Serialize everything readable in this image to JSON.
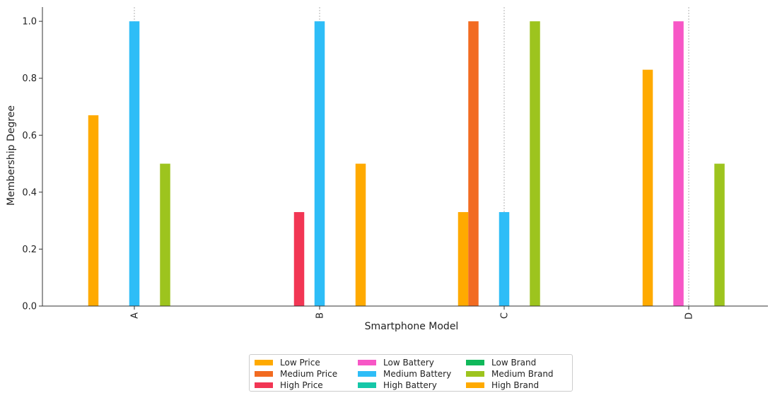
{
  "chart_data": {
    "type": "bar",
    "title": "",
    "xlabel": "Smartphone Model",
    "ylabel": "Membership Degree",
    "categories": [
      "A",
      "B",
      "C",
      "D"
    ],
    "ylim": [
      0,
      1.05
    ],
    "yticks": [
      "0.0",
      "0.2",
      "0.4",
      "0.6",
      "0.8",
      "1.0"
    ],
    "grid": "vertical dotted lines at categories",
    "legend_position": "bottom-center",
    "series": [
      {
        "name": "Low Price",
        "color": "#ffaa00",
        "values": [
          0.67,
          0.0,
          0.33,
          0.83
        ]
      },
      {
        "name": "Medium Price",
        "color": "#f26b21",
        "values": [
          0.0,
          0.0,
          1.0,
          0.0
        ]
      },
      {
        "name": "High Price",
        "color": "#f23654",
        "values": [
          0.0,
          0.33,
          0.0,
          0.0
        ]
      },
      {
        "name": "Low Battery",
        "color": "#f757c6",
        "values": [
          0.0,
          0.0,
          0.0,
          1.0
        ]
      },
      {
        "name": "Medium Battery",
        "color": "#2ebdf7",
        "values": [
          1.0,
          1.0,
          0.33,
          0.0
        ]
      },
      {
        "name": "High Battery",
        "color": "#15c7a8",
        "values": [
          0.0,
          0.0,
          0.0,
          0.0
        ]
      },
      {
        "name": "Low Brand",
        "color": "#10b85a",
        "values": [
          0.0,
          0.0,
          0.0,
          0.0
        ]
      },
      {
        "name": "Medium Brand",
        "color": "#9dc41e",
        "values": [
          0.5,
          0.0,
          1.0,
          0.5
        ]
      },
      {
        "name": "High Brand",
        "color": "#ffaa00",
        "values": [
          0.0,
          0.5,
          0.0,
          0.0
        ]
      }
    ]
  }
}
